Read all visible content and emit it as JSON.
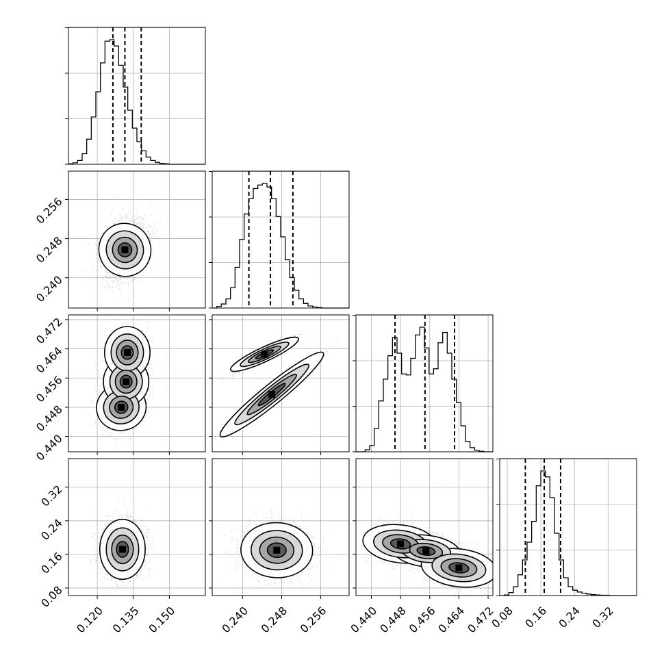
{
  "chart_data": {
    "type": "corner",
    "n_params": 4,
    "parameters": [
      {
        "index": 0,
        "range": [
          0.108,
          0.165
        ],
        "ticks": [
          "0.120",
          "0.135",
          "0.150"
        ],
        "tick_values": [
          0.12,
          0.135,
          0.15
        ],
        "quantiles": [
          0.1265,
          0.1315,
          0.1383
        ],
        "median": 0.1315,
        "sd": 0.0045
      },
      {
        "index": 1,
        "range": [
          0.2338,
          0.2618
        ],
        "ticks": [
          "0.240",
          "0.248",
          "0.256"
        ],
        "tick_values": [
          0.24,
          0.248,
          0.256
        ],
        "quantiles": [
          0.2413,
          0.2457,
          0.2503
        ],
        "median": 0.2457,
        "sd": 0.0031
      },
      {
        "index": 2,
        "range": [
          0.4358,
          0.4733
        ],
        "ticks": [
          "0.440",
          "0.448",
          "0.456",
          "0.464",
          "0.472"
        ],
        "tick_values": [
          0.44,
          0.448,
          0.456,
          0.464,
          0.472
        ],
        "quantiles": [
          0.4465,
          0.4547,
          0.4628
        ],
        "median": 0.4547,
        "sd": 0.0075
      },
      {
        "index": 3,
        "range": [
          0.062,
          0.388
        ],
        "ticks": [
          "0.08",
          "0.16",
          "0.24",
          "0.32"
        ],
        "tick_values": [
          0.08,
          0.16,
          0.24,
          0.32
        ],
        "quantiles": [
          0.123,
          0.168,
          0.207
        ],
        "median": 0.168,
        "sd": 0.04
      }
    ],
    "histograms": [
      {
        "param": 0,
        "bins": 30,
        "counts": [
          1,
          3,
          8,
          22,
          52,
          98,
          150,
          210,
          255,
          258,
          245,
          205,
          160,
          112,
          75,
          47,
          28,
          15,
          8,
          4,
          2,
          1,
          0,
          0,
          0,
          0,
          0,
          0,
          0,
          0
        ]
      },
      {
        "param": 1,
        "bins": 30,
        "counts": [
          0,
          3,
          8,
          18,
          40,
          80,
          135,
          185,
          215,
          235,
          242,
          245,
          238,
          215,
          180,
          140,
          95,
          60,
          35,
          18,
          9,
          4,
          2,
          1,
          0,
          0,
          0,
          0,
          0,
          0
        ]
      },
      {
        "param": 2,
        "bins": 30,
        "counts": [
          0,
          0,
          4,
          12,
          45,
          98,
          140,
          185,
          220,
          190,
          150,
          148,
          180,
          225,
          240,
          200,
          150,
          160,
          210,
          230,
          190,
          140,
          95,
          50,
          20,
          8,
          3,
          1,
          0,
          0
        ]
      },
      {
        "param": 3,
        "bins": 30,
        "counts": [
          0,
          2,
          10,
          30,
          70,
          120,
          180,
          250,
          370,
          420,
          400,
          330,
          210,
          120,
          60,
          30,
          18,
          12,
          8,
          5,
          3,
          2,
          1,
          1,
          0,
          0,
          0,
          0,
          0,
          0
        ]
      }
    ],
    "joint_panels": [
      {
        "x": 0,
        "y": 1,
        "correlation": 0.3
      },
      {
        "x": 0,
        "y": 2,
        "modes": [
          0.1295,
          0.1325,
          0.131
        ],
        "mode_y": [
          0.4475,
          0.4555,
          0.4635
        ],
        "correlation": 0.0
      },
      {
        "x": 1,
        "y": 2,
        "bands": "two parallel diagonal ridges"
      },
      {
        "x": 0,
        "y": 3,
        "correlation": 0.0
      },
      {
        "x": 1,
        "y": 3,
        "correlation": -0.1
      },
      {
        "x": 2,
        "y": 3,
        "correlation": -0.55
      }
    ],
    "grid": true,
    "title": "",
    "xlabel": "",
    "ylabel": ""
  }
}
